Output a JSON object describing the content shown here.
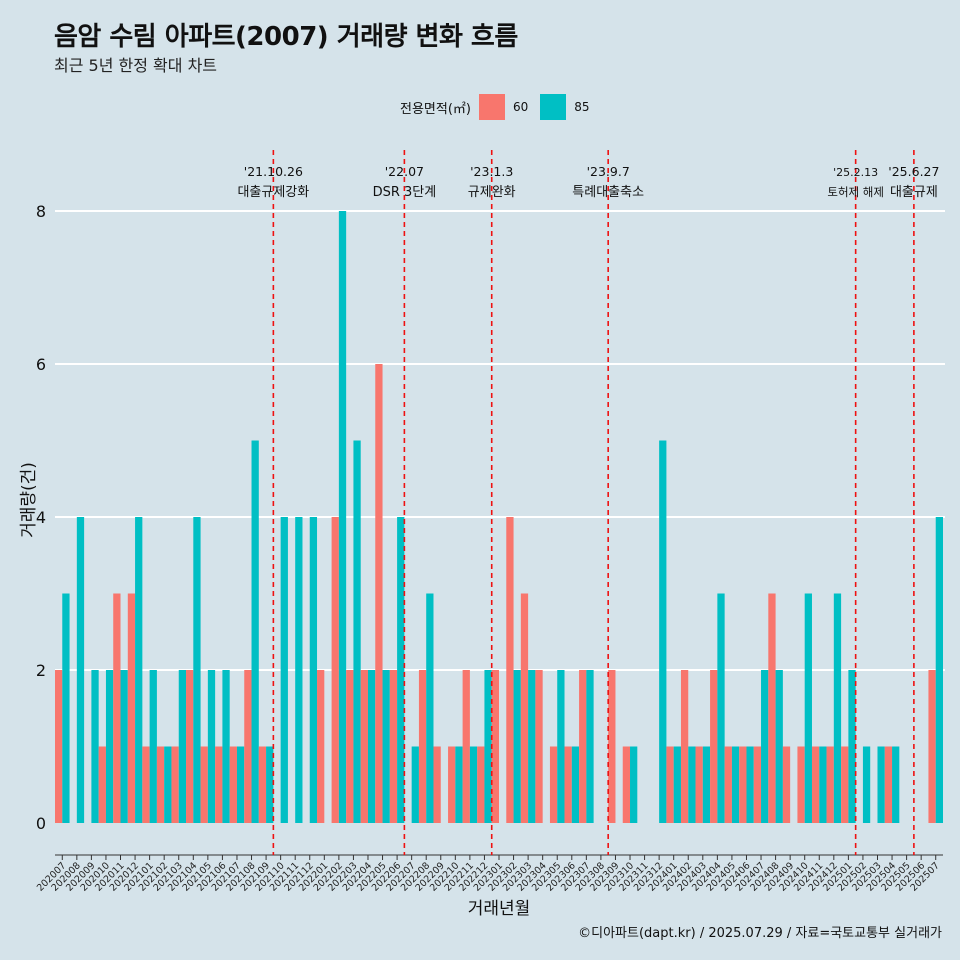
{
  "title": "음암 수림 아파트(2007) 거래량 변화 흐름",
  "subtitle": "최근 5년 한정 확대 차트",
  "caption": "©디아파트(dapt.kr) / 2025.07.29 / 자료=국토교통부 실거래가",
  "legend": {
    "title": "전용면적(㎡)",
    "items": [
      {
        "label": "60",
        "color": "#F8766D"
      },
      {
        "label": "85",
        "color": "#00BFC4"
      }
    ]
  },
  "chart_data": {
    "type": "bar",
    "xlabel": "거래년월",
    "ylabel": "거래량(건)",
    "ylim": [
      0,
      8
    ],
    "yticks": [
      0,
      2,
      4,
      6,
      8
    ],
    "grid": true,
    "legend_position": "top",
    "categories": [
      "202007",
      "202008",
      "202009",
      "202010",
      "202011",
      "202012",
      "202101",
      "202102",
      "202103",
      "202104",
      "202105",
      "202106",
      "202107",
      "202108",
      "202109",
      "202110",
      "202111",
      "202112",
      "202201",
      "202202",
      "202203",
      "202204",
      "202205",
      "202206",
      "202207",
      "202208",
      "202209",
      "202210",
      "202211",
      "202212",
      "202301",
      "202302",
      "202303",
      "202304",
      "202305",
      "202306",
      "202307",
      "202308",
      "202309",
      "202310",
      "202311",
      "202312",
      "202401",
      "202402",
      "202403",
      "202404",
      "202405",
      "202406",
      "202407",
      "202408",
      "202409",
      "202410",
      "202411",
      "202412",
      "202501",
      "202502",
      "202503",
      "202504",
      "202505",
      "202506",
      "202507"
    ],
    "series": [
      {
        "name": "60",
        "color": "#F8766D",
        "values": [
          2,
          0,
          0,
          1,
          3,
          3,
          1,
          1,
          1,
          2,
          1,
          1,
          1,
          2,
          1,
          0,
          0,
          0,
          2,
          4,
          2,
          2,
          6,
          2,
          0,
          2,
          1,
          1,
          2,
          1,
          2,
          4,
          3,
          2,
          1,
          1,
          2,
          0,
          2,
          1,
          0,
          0,
          1,
          2,
          1,
          2,
          1,
          1,
          1,
          3,
          1,
          1,
          1,
          1,
          1,
          0,
          0,
          1,
          0,
          0,
          2
        ]
      },
      {
        "name": "85",
        "color": "#00BFC4",
        "values": [
          3,
          4,
          2,
          2,
          2,
          4,
          2,
          1,
          2,
          4,
          2,
          2,
          1,
          5,
          1,
          4,
          4,
          4,
          0,
          8,
          5,
          2,
          2,
          4,
          1,
          3,
          0,
          1,
          1,
          2,
          0,
          2,
          2,
          0,
          2,
          1,
          2,
          0,
          0,
          1,
          0,
          5,
          1,
          1,
          1,
          3,
          1,
          1,
          2,
          2,
          0,
          3,
          1,
          3,
          2,
          1,
          1,
          1,
          0,
          0,
          4
        ]
      }
    ],
    "events": [
      {
        "month": "202110",
        "date": "'21.10.26",
        "label": "대출규제강화"
      },
      {
        "month": "202207",
        "date": "'22.07",
        "label": "DSR 3단계"
      },
      {
        "month": "202301",
        "date": "'23.1.3",
        "label": "규제완화"
      },
      {
        "month": "202309",
        "date": "'23.9.7",
        "label": "특례대출축소"
      },
      {
        "month": "202502",
        "date": "'25.2.13",
        "label": "토허제 해제"
      },
      {
        "month": "202506",
        "date": "'25.6.27",
        "label": "대출규제"
      }
    ]
  }
}
